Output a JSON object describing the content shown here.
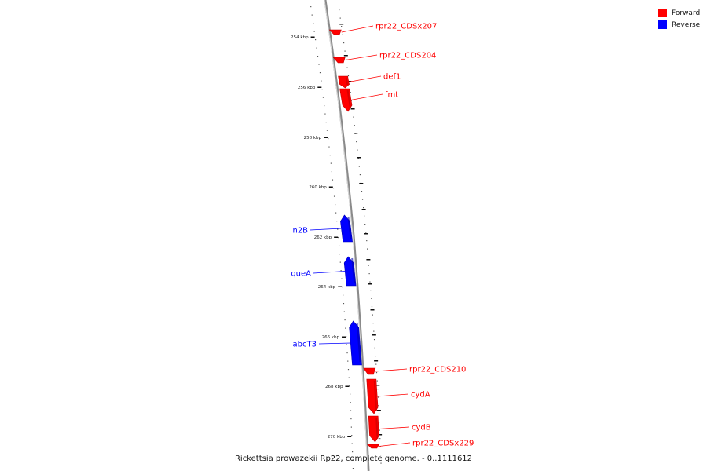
{
  "legend": [
    {
      "label": "Forward",
      "color": "#ff0000"
    },
    {
      "label": "Reverse",
      "color": "#0000ff"
    }
  ],
  "caption": "Rickettsia prowazekii Rp22, complete genome. - 0..1111612",
  "ticks": [
    "254 kbp",
    "256 kbp",
    "258 kbp",
    "260 kbp",
    "262 kbp",
    "264 kbp",
    "266 kbp",
    "268 kbp",
    "270 kbp"
  ],
  "genes": [
    {
      "name": "rpr22_CDSx207",
      "strand": "forward",
      "kind": "small"
    },
    {
      "name": "rpr22_CDS204",
      "strand": "forward",
      "kind": "small"
    },
    {
      "name": "def1",
      "strand": "forward",
      "kind": "gene"
    },
    {
      "name": "fmt",
      "strand": "forward",
      "kind": "gene"
    },
    {
      "name": "n2B",
      "strand": "reverse",
      "kind": "gene"
    },
    {
      "name": "queA",
      "strand": "reverse",
      "kind": "gene"
    },
    {
      "name": "abcT3",
      "strand": "reverse",
      "kind": "gene"
    },
    {
      "name": "rpr22_CDS210",
      "strand": "forward",
      "kind": "small"
    },
    {
      "name": "cydA",
      "strand": "forward",
      "kind": "gene"
    },
    {
      "name": "cydB",
      "strand": "forward",
      "kind": "gene"
    },
    {
      "name": "rpr22_CDSx229",
      "strand": "forward",
      "kind": "small"
    }
  ],
  "colors": {
    "forward": "#ff0000",
    "forward_dark": "#c40000",
    "reverse": "#0000ff",
    "reverse_dark": "#0000b0",
    "backbone": "#8a8a8a"
  }
}
